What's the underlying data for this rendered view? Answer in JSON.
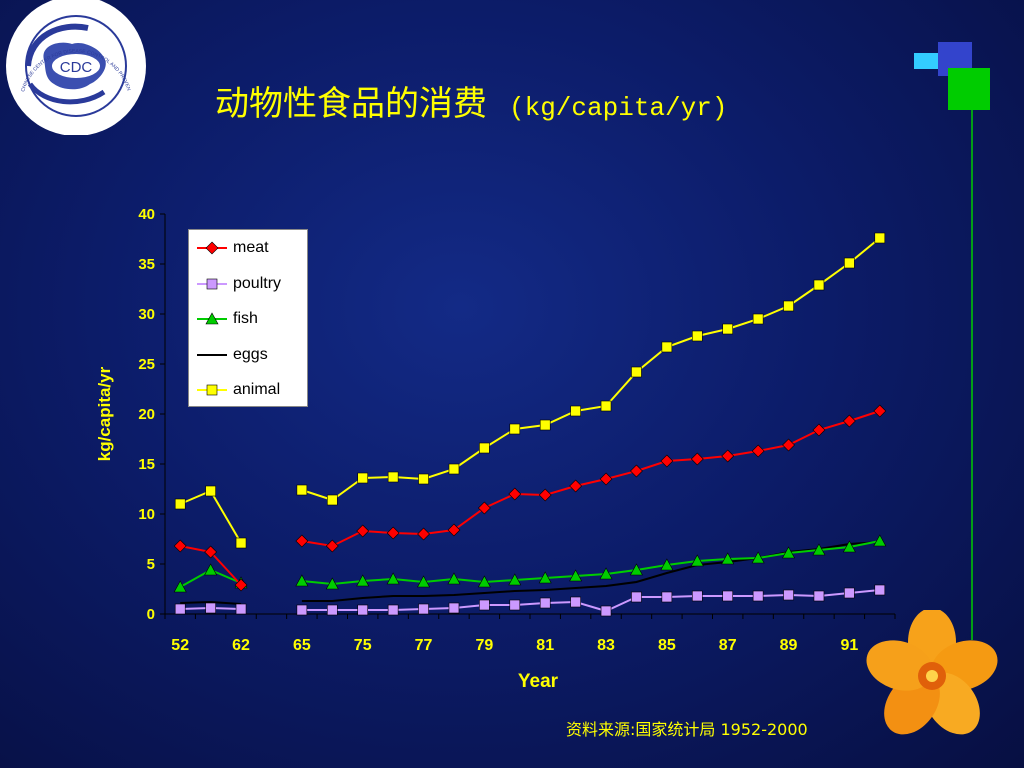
{
  "logo": {
    "text": "CDC",
    "ring_text": "CHINESE CENTER FOR DISEASE CONTROL AND PREVENTION"
  },
  "title": {
    "chinese": "动物性食品的消费",
    "unit": "(kg/capita/yr)"
  },
  "source": "资料来源:国家统计局 1952-2000",
  "colors": {
    "title": "#ffff00",
    "meat": "#ff0000",
    "poultry": "#cc99ff",
    "fish": "#00cc00",
    "eggs": "#000000",
    "animal": "#ffff00"
  },
  "chart_data": {
    "type": "line",
    "xlabel": "Year",
    "ylabel": "kg/capita/yr",
    "ylim": [
      0,
      40
    ],
    "yticks": [
      0,
      5,
      10,
      15,
      20,
      25,
      30,
      35,
      40
    ],
    "tick_labels": [
      "52",
      "62",
      "65",
      "75",
      "77",
      "79",
      "81",
      "83",
      "85",
      "87",
      "89",
      "91"
    ],
    "legend_position": "top-left",
    "periods": [
      {
        "start": 0,
        "count": 3
      },
      {
        "start": 4,
        "count": 20
      }
    ],
    "series": [
      {
        "name": "meat",
        "color": "#ff0000",
        "marker": "diamond",
        "periods": [
          [
            6.8,
            6.2,
            2.9
          ],
          [
            7.3,
            6.8,
            8.3,
            8.1,
            8.0,
            8.4,
            10.6,
            12.0,
            11.9,
            12.8,
            13.5,
            14.3,
            15.3,
            15.5,
            15.8,
            16.3,
            16.9,
            18.4,
            19.3,
            20.3
          ]
        ]
      },
      {
        "name": "poultry",
        "color": "#cc99ff",
        "marker": "square",
        "periods": [
          [
            0.5,
            0.6,
            0.5
          ],
          [
            0.4,
            0.4,
            0.4,
            0.4,
            0.5,
            0.6,
            0.9,
            0.9,
            1.1,
            1.2,
            0.3,
            1.7,
            1.7,
            1.8,
            1.8,
            1.8,
            1.9,
            1.8,
            2.1,
            2.4
          ]
        ]
      },
      {
        "name": "fish",
        "color": "#00cc00",
        "marker": "triangle",
        "periods": [
          [
            2.7,
            4.4,
            3.1
          ],
          [
            3.3,
            3.0,
            3.3,
            3.5,
            3.2,
            3.5,
            3.2,
            3.4,
            3.6,
            3.8,
            4.0,
            4.4,
            4.9,
            5.3,
            5.5,
            5.6,
            6.1,
            6.4,
            6.7,
            7.3
          ]
        ]
      },
      {
        "name": "eggs",
        "color": "#000000",
        "marker": "none",
        "periods": [
          [
            1.1,
            1.2,
            1.0
          ],
          [
            1.3,
            1.3,
            1.6,
            1.8,
            1.8,
            1.9,
            2.1,
            2.3,
            2.4,
            2.6,
            2.8,
            3.2,
            4.1,
            4.9,
            5.2,
            5.6,
            6.2,
            6.5,
            7.0,
            7.2
          ]
        ]
      },
      {
        "name": "animal",
        "color": "#ffff00",
        "marker": "square",
        "periods": [
          [
            11.0,
            12.3,
            7.1
          ],
          [
            12.4,
            11.4,
            13.6,
            13.7,
            13.5,
            14.5,
            16.6,
            18.5,
            18.9,
            20.3,
            20.8,
            24.2,
            26.7,
            27.8,
            28.5,
            29.5,
            30.8,
            32.9,
            35.1,
            37.6
          ]
        ]
      }
    ]
  }
}
